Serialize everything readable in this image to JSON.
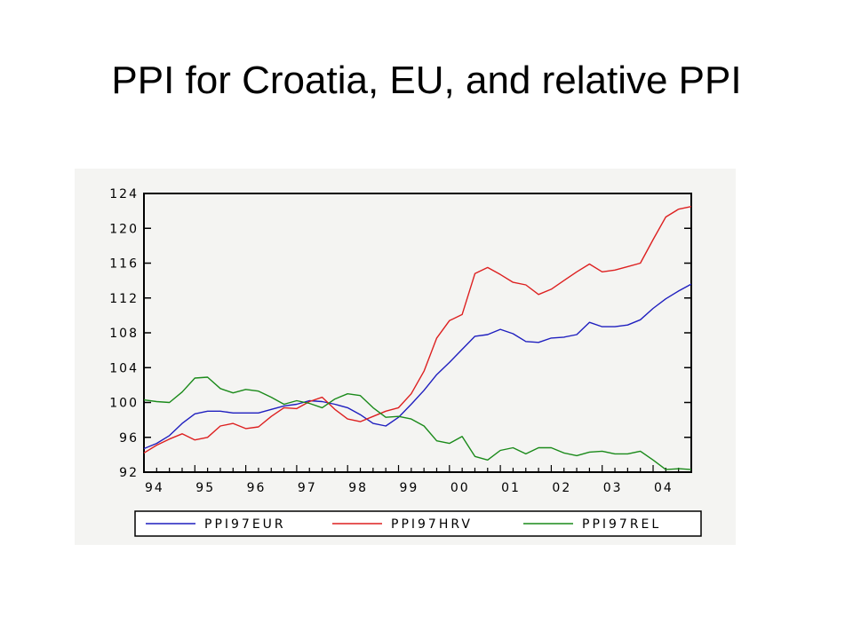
{
  "slide": {
    "title": "PPI for Croatia, EU, and relative PPI"
  },
  "chart_data": {
    "type": "line",
    "xlabel": "",
    "ylabel": "",
    "x_ticks": [
      "94",
      "95",
      "96",
      "97",
      "98",
      "99",
      "00",
      "01",
      "02",
      "03",
      "04"
    ],
    "y_ticks": [
      92,
      96,
      100,
      104,
      108,
      112,
      116,
      120,
      124
    ],
    "ylim": [
      92,
      124
    ],
    "xlim": [
      1994.0,
      2004.75
    ],
    "grid": false,
    "legend_position": "bottom",
    "colors": {
      "PPI97EUR": "#1f1fbf",
      "PPI97HRV": "#dd2020",
      "PPI97REL": "#1a8a1a"
    },
    "x": [
      1994.0,
      1994.25,
      1994.5,
      1994.75,
      1995.0,
      1995.25,
      1995.5,
      1995.75,
      1996.0,
      1996.25,
      1996.5,
      1996.75,
      1997.0,
      1997.25,
      1997.5,
      1997.75,
      1998.0,
      1998.25,
      1998.5,
      1998.75,
      1999.0,
      1999.25,
      1999.5,
      1999.75,
      2000.0,
      2000.25,
      2000.5,
      2000.75,
      2001.0,
      2001.25,
      2001.5,
      2001.75,
      2002.0,
      2002.25,
      2002.5,
      2002.75,
      2003.0,
      2003.25,
      2003.5,
      2003.75,
      2004.0,
      2004.25,
      2004.5,
      2004.75
    ],
    "series": [
      {
        "name": "PPI97EUR",
        "values": [
          94.7,
          95.3,
          96.2,
          97.6,
          98.7,
          99.0,
          99.0,
          98.8,
          98.8,
          98.8,
          99.2,
          99.6,
          99.8,
          100.2,
          100.1,
          99.8,
          99.4,
          98.6,
          97.6,
          97.3,
          98.3,
          99.8,
          101.4,
          103.2,
          104.6,
          106.1,
          107.6,
          107.8,
          108.4,
          107.9,
          107.0,
          106.9,
          107.4,
          107.5,
          107.8,
          109.2,
          108.7,
          108.7,
          108.9,
          109.5,
          110.8,
          111.9,
          112.8,
          113.6
        ]
      },
      {
        "name": "PPI97HRV",
        "values": [
          94.2,
          95.1,
          95.8,
          96.4,
          95.7,
          96.0,
          97.3,
          97.6,
          97.0,
          97.2,
          98.4,
          99.4,
          99.3,
          100.1,
          100.6,
          99.2,
          98.1,
          97.8,
          98.4,
          99.0,
          99.4,
          101.0,
          103.6,
          107.4,
          109.4,
          110.1,
          114.8,
          115.5,
          114.7,
          113.8,
          113.5,
          112.4,
          113.0,
          114.0,
          115.0,
          115.9,
          115.0,
          115.2,
          115.6,
          116.0,
          118.7,
          121.3,
          122.2,
          122.5
        ]
      },
      {
        "name": "PPI97REL",
        "values": [
          100.3,
          100.1,
          100.0,
          101.2,
          102.8,
          102.9,
          101.6,
          101.1,
          101.5,
          101.3,
          100.6,
          99.8,
          100.2,
          99.9,
          99.4,
          100.4,
          101.0,
          100.8,
          99.4,
          98.3,
          98.4,
          98.1,
          97.3,
          95.6,
          95.3,
          96.1,
          93.8,
          93.4,
          94.5,
          94.8,
          94.1,
          94.8,
          94.8,
          94.2,
          93.9,
          94.3,
          94.4,
          94.1,
          94.1,
          94.4,
          93.4,
          92.3,
          92.4,
          92.3
        ]
      }
    ]
  }
}
